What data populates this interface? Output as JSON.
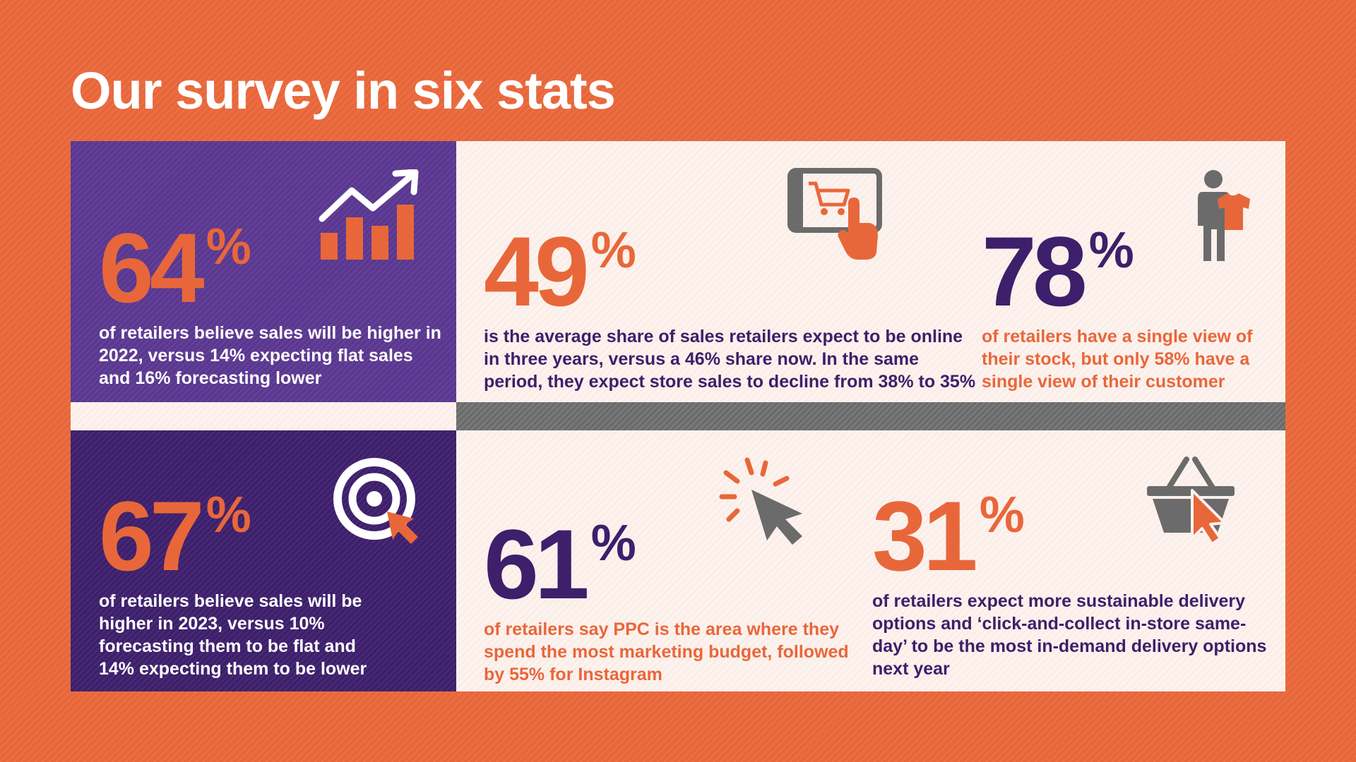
{
  "title": "Our survey in six stats",
  "colors": {
    "orange": "#e8673a",
    "purple": "#5a3790",
    "dark_purple": "#3d1f6b",
    "grey": "#6b6b6b",
    "cream": "#fcf2ee"
  },
  "stats": [
    {
      "value": "64",
      "unit": "%",
      "text": "of retailers believe sales will be higher in 2022, versus 14% expecting flat sales and 16% forecasting lower",
      "icon": "growth-chart-icon"
    },
    {
      "value": "49",
      "unit": "%",
      "text": "is the average share of sales retailers expect to be online in three years, versus a 46% share now. In the same period, they expect store sales to decline from 38% to 35%",
      "icon": "tablet-cart-icon"
    },
    {
      "value": "78",
      "unit": "%",
      "text": "of retailers have a single view of their stock, but only 58% have a single view of their customer",
      "icon": "person-shirt-icon"
    },
    {
      "value": "67",
      "unit": "%",
      "text": "of retailers believe sales will be higher in 2023, versus 10% forecasting them to be flat and 14% expecting them to be lower",
      "icon": "target-cursor-icon"
    },
    {
      "value": "61",
      "unit": "%",
      "text": "of retailers say PPC is the area where they spend the most marketing budget, followed by 55% for Instagram",
      "icon": "click-cursor-icon"
    },
    {
      "value": "31",
      "unit": "%",
      "text": "of retailers expect more sustainable delivery options and ‘click-and-collect in-store same-day’ to be the most in-demand delivery options next year",
      "icon": "basket-cursor-icon"
    }
  ]
}
